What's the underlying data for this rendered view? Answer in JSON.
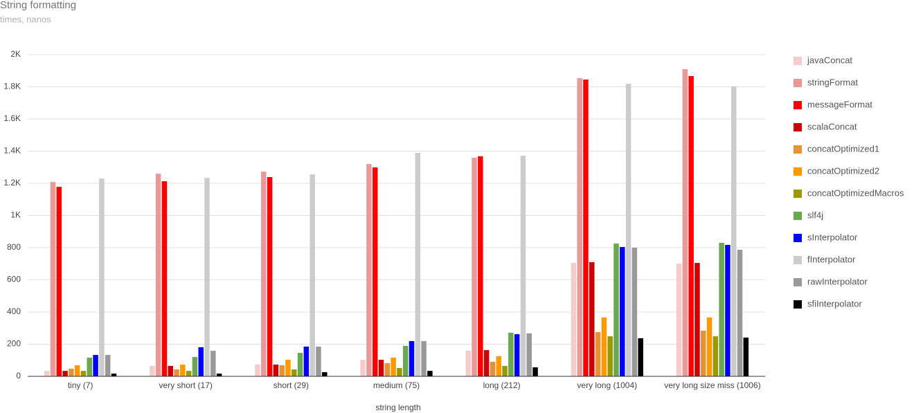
{
  "chart_data": {
    "type": "bar",
    "title": "String formatting",
    "subtitle": "times, nanos",
    "x_label": "string length",
    "categories": [
      "tiny (7)",
      "very short (17)",
      "short (29)",
      "medium (75)",
      "long (212)",
      "very long (1004)",
      "very long size miss (1006)"
    ],
    "ylim": [
      0,
      2000
    ],
    "yticks": [
      0,
      200,
      400,
      600,
      800,
      {
        "value": 1000,
        "label": "1K"
      },
      {
        "value": 1200,
        "label": "1.2K"
      },
      {
        "value": 1400,
        "label": "1.4K"
      },
      {
        "value": 1600,
        "label": "1.6K"
      },
      {
        "value": 1800,
        "label": "1.8K"
      },
      {
        "value": 2000,
        "label": "2K"
      }
    ],
    "grid": true,
    "legend": "right",
    "series": [
      {
        "name": "javaConcat",
        "color": "#f4cccc",
        "values": [
          34,
          65,
          73,
          103,
          159,
          705,
          701
        ]
      },
      {
        "name": "stringFormat",
        "color": "#ea9999",
        "values": [
          1208,
          1260,
          1273,
          1320,
          1359,
          1854,
          1910
        ]
      },
      {
        "name": "messageFormat",
        "color": "#ff0000",
        "values": [
          1178,
          1213,
          1239,
          1299,
          1368,
          1845,
          1867
        ]
      },
      {
        "name": "scalaConcat",
        "color": "#cc0000",
        "values": [
          34,
          65,
          73,
          103,
          163,
          710,
          705
        ]
      },
      {
        "name": "concatOptimized1",
        "color": "#e69138",
        "values": [
          47,
          43,
          69,
          82,
          90,
          275,
          284
        ]
      },
      {
        "name": "concatOptimized2",
        "color": "#ff9900",
        "values": [
          69,
          73,
          103,
          116,
          125,
          366,
          366
        ]
      },
      {
        "name": "concatOptimizedMacros",
        "color": "#999900",
        "values": [
          34,
          34,
          43,
          52,
          65,
          249,
          249
        ]
      },
      {
        "name": "slf4j",
        "color": "#6aa84f",
        "values": [
          116,
          120,
          146,
          189,
          271,
          826,
          830
        ]
      },
      {
        "name": "sInterpolator",
        "color": "#0000ff",
        "values": [
          133,
          181,
          185,
          219,
          262,
          804,
          817
        ]
      },
      {
        "name": "fInterpolator",
        "color": "#cccccc",
        "values": [
          1230,
          1234,
          1256,
          1389,
          1372,
          1819,
          1802
        ]
      },
      {
        "name": "rawInterpolator",
        "color": "#999999",
        "values": [
          133,
          159,
          185,
          219,
          267,
          800,
          787
        ]
      },
      {
        "name": "sfiInterpolator",
        "color": "#000000",
        "values": [
          17,
          17,
          26,
          34,
          56,
          237,
          241
        ]
      }
    ]
  }
}
